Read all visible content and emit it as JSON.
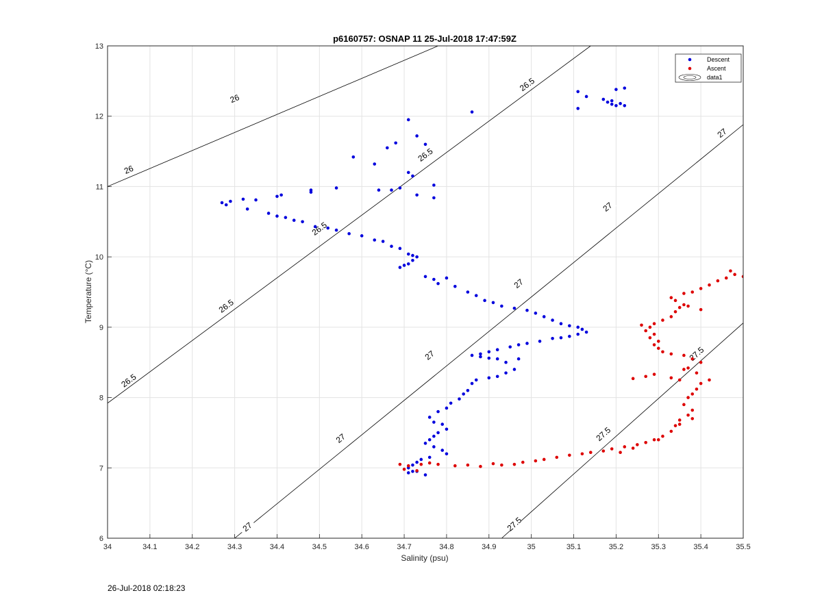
{
  "chart_data": {
    "type": "scatter",
    "title": "p6160757: OSNAP 11 25-Jul-2018 17:47:59Z",
    "xlabel": "Salinity (psu)",
    "ylabel": "Temperature (°C)",
    "xlim": [
      34,
      35.5
    ],
    "ylim": [
      6,
      13
    ],
    "xticks": [
      "34",
      "34.1",
      "34.2",
      "34.3",
      "34.4",
      "34.5",
      "34.6",
      "34.7",
      "34.8",
      "34.9",
      "35",
      "35.1",
      "35.2",
      "35.3",
      "35.4",
      "35.5"
    ],
    "yticks": [
      "6",
      "7",
      "8",
      "9",
      "10",
      "11",
      "12",
      "13"
    ],
    "grid": true,
    "legend_position": "top-right",
    "legend": [
      "Descent",
      "Ascent",
      "data1"
    ],
    "contours": [
      {
        "level": "26",
        "points": [
          [
            34.0,
            11.0
          ],
          [
            34.78,
            13.0
          ]
        ],
        "labels": [
          [
            34.05,
            11.24
          ],
          [
            34.3,
            12.25
          ]
        ]
      },
      {
        "level": "26.5",
        "points": [
          [
            34.0,
            7.92
          ],
          [
            35.14,
            13.0
          ]
        ],
        "labels": [
          [
            34.05,
            8.24
          ],
          [
            34.28,
            9.3
          ],
          [
            34.5,
            10.4
          ],
          [
            34.75,
            11.45
          ],
          [
            34.99,
            12.45
          ]
        ]
      },
      {
        "level": "27",
        "points": [
          [
            34.3,
            6.0
          ],
          [
            35.5,
            11.88
          ]
        ],
        "labels": [
          [
            34.33,
            6.16
          ],
          [
            34.55,
            7.42
          ],
          [
            34.76,
            8.6
          ],
          [
            34.97,
            9.62
          ],
          [
            35.18,
            10.71
          ],
          [
            35.45,
            11.76
          ]
        ]
      },
      {
        "level": "27.5",
        "points": [
          [
            34.93,
            6.0
          ],
          [
            35.5,
            9.06
          ]
        ],
        "labels": [
          [
            34.96,
            6.2
          ],
          [
            35.17,
            7.48
          ],
          [
            35.39,
            8.62
          ]
        ]
      }
    ],
    "series": [
      {
        "name": "Descent",
        "color": "#0000dd",
        "points": [
          [
            34.27,
            10.77
          ],
          [
            34.28,
            10.74
          ],
          [
            34.29,
            10.79
          ],
          [
            34.32,
            10.82
          ],
          [
            34.33,
            10.68
          ],
          [
            34.35,
            10.81
          ],
          [
            34.38,
            10.62
          ],
          [
            34.4,
            10.86
          ],
          [
            34.41,
            10.88
          ],
          [
            34.4,
            10.58
          ],
          [
            34.42,
            10.56
          ],
          [
            34.44,
            10.52
          ],
          [
            34.46,
            10.5
          ],
          [
            34.49,
            10.43
          ],
          [
            34.52,
            10.41
          ],
          [
            34.54,
            10.38
          ],
          [
            34.57,
            10.33
          ],
          [
            34.6,
            10.3
          ],
          [
            34.63,
            10.24
          ],
          [
            34.65,
            10.22
          ],
          [
            34.67,
            10.15
          ],
          [
            34.69,
            10.12
          ],
          [
            34.71,
            10.04
          ],
          [
            34.72,
            10.02
          ],
          [
            34.73,
            10.0
          ],
          [
            34.7,
            9.88
          ],
          [
            34.69,
            9.85
          ],
          [
            34.71,
            9.9
          ],
          [
            34.72,
            9.95
          ],
          [
            34.75,
            9.72
          ],
          [
            34.77,
            9.68
          ],
          [
            34.78,
            9.62
          ],
          [
            34.8,
            9.7
          ],
          [
            34.82,
            9.58
          ],
          [
            34.85,
            9.5
          ],
          [
            34.87,
            9.45
          ],
          [
            34.89,
            9.38
          ],
          [
            34.91,
            9.35
          ],
          [
            34.93,
            9.3
          ],
          [
            34.96,
            9.27
          ],
          [
            34.99,
            9.24
          ],
          [
            35.01,
            9.2
          ],
          [
            35.03,
            9.15
          ],
          [
            35.05,
            9.1
          ],
          [
            35.07,
            9.05
          ],
          [
            35.09,
            9.02
          ],
          [
            35.11,
            9.0
          ],
          [
            35.12,
            8.97
          ],
          [
            35.13,
            8.93
          ],
          [
            35.11,
            8.9
          ],
          [
            35.09,
            8.87
          ],
          [
            35.07,
            8.85
          ],
          [
            35.05,
            8.84
          ],
          [
            35.02,
            8.8
          ],
          [
            34.99,
            8.77
          ],
          [
            34.97,
            8.75
          ],
          [
            34.95,
            8.72
          ],
          [
            34.92,
            8.68
          ],
          [
            34.9,
            8.65
          ],
          [
            34.88,
            8.62
          ],
          [
            34.86,
            8.6
          ],
          [
            34.88,
            8.58
          ],
          [
            34.9,
            8.56
          ],
          [
            34.92,
            8.55
          ],
          [
            34.94,
            8.5
          ],
          [
            34.97,
            8.55
          ],
          [
            34.96,
            8.4
          ],
          [
            34.94,
            8.35
          ],
          [
            34.92,
            8.3
          ],
          [
            34.9,
            8.28
          ],
          [
            34.87,
            8.25
          ],
          [
            34.86,
            8.2
          ],
          [
            34.85,
            8.1
          ],
          [
            34.84,
            8.05
          ],
          [
            34.83,
            7.98
          ],
          [
            34.81,
            7.92
          ],
          [
            34.8,
            7.85
          ],
          [
            34.78,
            7.8
          ],
          [
            34.76,
            7.72
          ],
          [
            34.77,
            7.65
          ],
          [
            34.79,
            7.62
          ],
          [
            34.8,
            7.55
          ],
          [
            34.78,
            7.5
          ],
          [
            34.77,
            7.45
          ],
          [
            34.76,
            7.4
          ],
          [
            34.75,
            7.35
          ],
          [
            34.77,
            7.3
          ],
          [
            34.79,
            7.25
          ],
          [
            34.8,
            7.2
          ],
          [
            34.76,
            7.15
          ],
          [
            34.74,
            7.12
          ],
          [
            34.73,
            7.08
          ],
          [
            34.72,
            7.04
          ],
          [
            34.71,
            7.0
          ],
          [
            34.72,
            6.95
          ],
          [
            34.71,
            6.93
          ],
          [
            34.75,
            6.9
          ],
          [
            34.73,
            6.95
          ],
          [
            34.71,
            11.95
          ],
          [
            34.73,
            11.72
          ],
          [
            34.75,
            11.6
          ],
          [
            34.68,
            11.62
          ],
          [
            34.66,
            11.55
          ],
          [
            34.63,
            11.32
          ],
          [
            34.58,
            11.42
          ],
          [
            34.71,
            11.2
          ],
          [
            34.72,
            11.15
          ],
          [
            34.77,
            11.02
          ],
          [
            34.64,
            10.95
          ],
          [
            34.67,
            10.95
          ],
          [
            34.69,
            10.98
          ],
          [
            34.73,
            10.88
          ],
          [
            34.77,
            10.84
          ],
          [
            34.54,
            10.98
          ],
          [
            34.48,
            10.95
          ],
          [
            34.48,
            10.92
          ],
          [
            34.86,
            12.06
          ],
          [
            35.11,
            12.35
          ],
          [
            35.11,
            12.11
          ],
          [
            35.13,
            12.28
          ],
          [
            35.17,
            12.24
          ],
          [
            35.18,
            12.2
          ],
          [
            35.19,
            12.17
          ],
          [
            35.2,
            12.15
          ],
          [
            35.21,
            12.18
          ],
          [
            35.2,
            12.38
          ],
          [
            35.22,
            12.4
          ],
          [
            35.22,
            12.15
          ],
          [
            35.19,
            12.22
          ]
        ]
      },
      {
        "name": "Ascent",
        "color": "#dd0000",
        "points": [
          [
            34.69,
            7.05
          ],
          [
            34.71,
            7.03
          ],
          [
            34.74,
            7.05
          ],
          [
            34.7,
            6.98
          ],
          [
            34.73,
            6.96
          ],
          [
            34.76,
            7.07
          ],
          [
            34.78,
            7.05
          ],
          [
            34.82,
            7.03
          ],
          [
            34.85,
            7.04
          ],
          [
            34.88,
            7.02
          ],
          [
            34.91,
            7.06
          ],
          [
            34.93,
            7.04
          ],
          [
            34.96,
            7.05
          ],
          [
            34.98,
            7.08
          ],
          [
            35.01,
            7.1
          ],
          [
            35.03,
            7.12
          ],
          [
            35.06,
            7.15
          ],
          [
            35.09,
            7.18
          ],
          [
            35.12,
            7.2
          ],
          [
            35.14,
            7.22
          ],
          [
            35.17,
            7.24
          ],
          [
            35.19,
            7.27
          ],
          [
            35.22,
            7.3
          ],
          [
            35.25,
            7.33
          ],
          [
            35.27,
            7.36
          ],
          [
            35.29,
            7.4
          ],
          [
            35.31,
            7.45
          ],
          [
            35.33,
            7.52
          ],
          [
            35.34,
            7.6
          ],
          [
            35.35,
            7.68
          ],
          [
            35.37,
            7.75
          ],
          [
            35.38,
            7.82
          ],
          [
            35.36,
            7.9
          ],
          [
            35.37,
            8.0
          ],
          [
            35.38,
            8.05
          ],
          [
            35.39,
            8.12
          ],
          [
            35.4,
            8.2
          ],
          [
            35.42,
            8.25
          ],
          [
            35.39,
            8.35
          ],
          [
            35.37,
            8.42
          ],
          [
            35.4,
            8.5
          ],
          [
            35.38,
            8.55
          ],
          [
            35.36,
            8.6
          ],
          [
            35.33,
            8.62
          ],
          [
            35.31,
            8.65
          ],
          [
            35.3,
            8.7
          ],
          [
            35.29,
            8.75
          ],
          [
            35.3,
            8.8
          ],
          [
            35.28,
            8.85
          ],
          [
            35.29,
            8.9
          ],
          [
            35.27,
            8.95
          ],
          [
            35.28,
            9.0
          ],
          [
            35.26,
            9.03
          ],
          [
            35.29,
            9.05
          ],
          [
            35.31,
            9.1
          ],
          [
            35.33,
            9.15
          ],
          [
            35.34,
            9.22
          ],
          [
            35.35,
            9.28
          ],
          [
            35.36,
            9.32
          ],
          [
            35.34,
            9.38
          ],
          [
            35.33,
            9.42
          ],
          [
            35.36,
            9.48
          ],
          [
            35.38,
            9.5
          ],
          [
            35.4,
            9.55
          ],
          [
            35.42,
            9.6
          ],
          [
            35.44,
            9.66
          ],
          [
            35.46,
            9.7
          ],
          [
            35.48,
            9.75
          ],
          [
            35.5,
            9.72
          ],
          [
            35.47,
            9.8
          ],
          [
            35.4,
            9.25
          ],
          [
            35.37,
            9.3
          ],
          [
            35.24,
            8.27
          ],
          [
            35.27,
            8.3
          ],
          [
            35.29,
            8.33
          ],
          [
            35.33,
            8.28
          ],
          [
            35.35,
            8.25
          ],
          [
            35.36,
            8.4
          ],
          [
            35.38,
            7.7
          ],
          [
            35.35,
            7.62
          ],
          [
            35.3,
            7.4
          ],
          [
            35.24,
            7.28
          ],
          [
            35.21,
            7.22
          ]
        ]
      }
    ]
  },
  "footer": {
    "timestamp": "26-Jul-2018 02:18:23"
  }
}
